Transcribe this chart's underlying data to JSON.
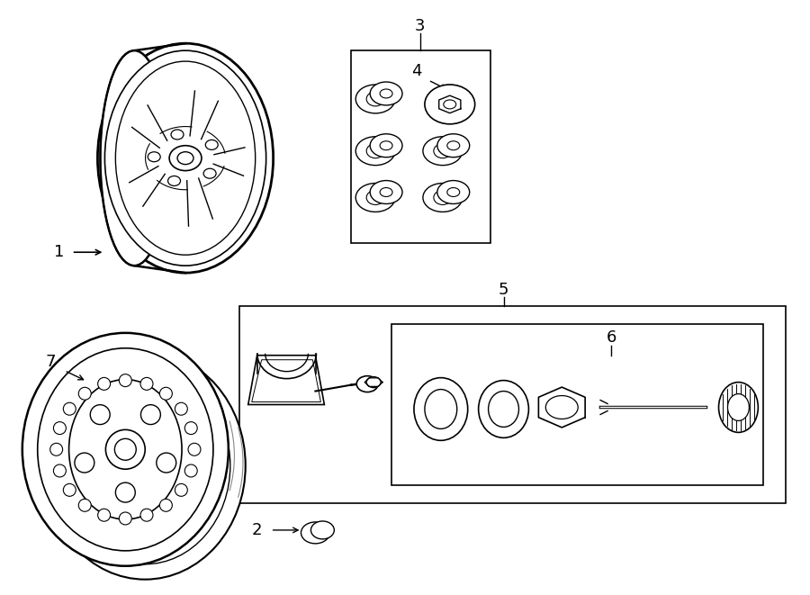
{
  "background_color": "#ffffff",
  "line_color": "#000000",
  "line_width": 1.2,
  "fig_width": 9.0,
  "fig_height": 6.61,
  "dpi": 100
}
